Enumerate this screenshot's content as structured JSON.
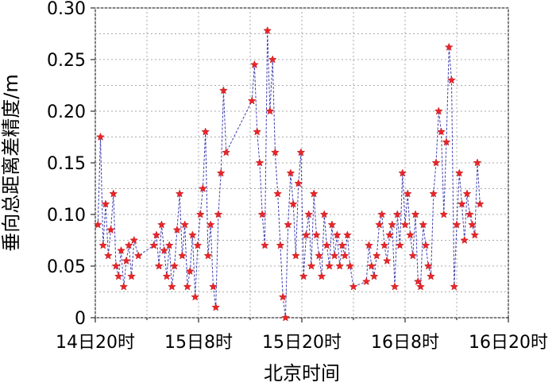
{
  "chart_data": {
    "type": "scatter",
    "xlabel": "北京时间",
    "ylabel": "垂向总距离差精度/m",
    "grid": true,
    "ylim": [
      0,
      0.3
    ],
    "xlim_hours": [
      0,
      48
    ],
    "yticks": [
      {
        "value": 0,
        "label": "0"
      },
      {
        "value": 0.05,
        "label": "0.05"
      },
      {
        "value": 0.1,
        "label": "0.10"
      },
      {
        "value": 0.15,
        "label": "0.15"
      },
      {
        "value": 0.2,
        "label": "0.20"
      },
      {
        "value": 0.25,
        "label": "0.25"
      },
      {
        "value": 0.3,
        "label": "0.30"
      }
    ],
    "xticks": [
      {
        "value": 0,
        "label": "14日20时"
      },
      {
        "value": 12,
        "label": "15日8时"
      },
      {
        "value": 24,
        "label": "15日20时"
      },
      {
        "value": 36,
        "label": "16日8时"
      },
      {
        "value": 48,
        "label": "16日20时"
      }
    ],
    "series": [
      {
        "color": "#e8262a",
        "line_color": "#3f3fb0",
        "marker": "star",
        "x_hours": [
          0.3,
          0.6,
          0.9,
          1.2,
          1.5,
          1.8,
          2.1,
          2.4,
          2.7,
          3.0,
          3.3,
          3.6,
          3.9,
          4.2,
          4.5,
          5.0,
          6.8,
          7.1,
          7.4,
          7.7,
          8.0,
          8.3,
          8.6,
          8.9,
          9.2,
          9.5,
          9.8,
          10.1,
          10.4,
          10.7,
          11.0,
          11.3,
          11.6,
          11.9,
          12.2,
          12.5,
          12.8,
          13.1,
          13.4,
          13.7,
          14.0,
          14.3,
          14.6,
          14.9,
          15.2,
          18.2,
          18.5,
          18.8,
          19.1,
          19.4,
          19.7,
          20.0,
          20.3,
          20.6,
          20.9,
          21.2,
          21.5,
          21.8,
          22.1,
          22.4,
          22.7,
          23.0,
          23.3,
          23.6,
          23.9,
          24.2,
          24.5,
          24.8,
          25.1,
          25.4,
          25.7,
          26.0,
          26.3,
          26.6,
          26.9,
          27.2,
          27.5,
          27.8,
          28.1,
          28.4,
          28.7,
          29.0,
          29.3,
          29.6,
          30.0,
          31.5,
          31.8,
          32.1,
          32.4,
          32.7,
          33.0,
          33.3,
          33.6,
          33.9,
          34.2,
          34.5,
          34.8,
          35.1,
          35.4,
          35.7,
          36.0,
          36.3,
          36.6,
          36.9,
          37.2,
          37.5,
          37.8,
          38.1,
          38.4,
          38.7,
          39.0,
          39.3,
          39.6,
          39.9,
          40.2,
          40.5,
          40.8,
          41.1,
          41.4,
          41.7,
          42.0,
          42.3,
          42.6,
          42.9,
          43.2,
          43.5,
          43.8,
          44.1,
          44.4,
          44.7
        ],
        "y": [
          0.09,
          0.175,
          0.07,
          0.11,
          0.06,
          0.085,
          0.12,
          0.05,
          0.04,
          0.065,
          0.03,
          0.055,
          0.07,
          0.04,
          0.075,
          0.06,
          0.07,
          0.08,
          0.05,
          0.09,
          0.065,
          0.04,
          0.07,
          0.03,
          0.05,
          0.085,
          0.12,
          0.06,
          0.09,
          0.03,
          0.045,
          0.08,
          0.02,
          0.07,
          0.1,
          0.125,
          0.18,
          0.06,
          0.09,
          0.03,
          0.01,
          0.1,
          0.14,
          0.22,
          0.16,
          0.21,
          0.245,
          0.18,
          0.15,
          0.1,
          0.07,
          0.278,
          0.2,
          0.25,
          0.16,
          0.12,
          0.07,
          0.02,
          0.0,
          0.09,
          0.14,
          0.11,
          0.06,
          0.13,
          0.16,
          0.04,
          0.08,
          0.1,
          0.05,
          0.12,
          0.08,
          0.06,
          0.04,
          0.1,
          0.07,
          0.05,
          0.09,
          0.06,
          0.08,
          0.05,
          0.07,
          0.06,
          0.08,
          0.05,
          0.03,
          0.035,
          0.07,
          0.05,
          0.04,
          0.06,
          0.09,
          0.1,
          0.07,
          0.055,
          0.08,
          0.09,
          0.03,
          0.1,
          0.07,
          0.14,
          0.09,
          0.12,
          0.08,
          0.06,
          0.1,
          0.035,
          0.03,
          0.09,
          0.07,
          0.05,
          0.04,
          0.12,
          0.15,
          0.2,
          0.18,
          0.1,
          0.17,
          0.262,
          0.23,
          0.03,
          0.09,
          0.14,
          0.11,
          0.075,
          0.12,
          0.1,
          0.09,
          0.08,
          0.15,
          0.11
        ]
      }
    ]
  }
}
